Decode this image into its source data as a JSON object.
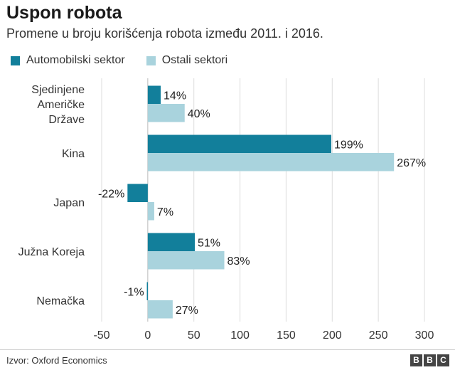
{
  "header": {
    "title": "Uspon robota",
    "subtitle": "Promene u broju korišćenja robota između 2011. i 2016."
  },
  "footer": {
    "source": "Izvor: Oxford Economics",
    "logo_letters": [
      "B",
      "B",
      "C"
    ]
  },
  "colors": {
    "auto": "#127f9b",
    "other": "#a9d3dd",
    "grid": "#dddddd",
    "text": "#222222"
  },
  "chart_data": {
    "type": "bar",
    "orientation": "horizontal",
    "title": "Uspon robota",
    "subtitle": "Promene u broju korišćenja robota između 2011. i 2016.",
    "categories": [
      "Sjedinjene Američke Države",
      "Kina",
      "Japan",
      "Južna Koreja",
      "Nemačka"
    ],
    "category_label_lines": [
      [
        "Sjedinjene",
        "Američke",
        "Države"
      ],
      [
        "Kina"
      ],
      [
        "Japan"
      ],
      [
        "Južna Koreja"
      ],
      [
        "Nemačka"
      ]
    ],
    "series": [
      {
        "name": "Automobilski sektor",
        "values": [
          14,
          199,
          -22,
          51,
          -1
        ],
        "labels": [
          "14%",
          "199%",
          "-22%",
          "51%",
          "-1%"
        ],
        "color": "#127f9b"
      },
      {
        "name": "Ostali sektori",
        "values": [
          40,
          267,
          7,
          83,
          27
        ],
        "labels": [
          "40%",
          "267%",
          "7%",
          "83%",
          "27%"
        ],
        "color": "#a9d3dd"
      }
    ],
    "xlim": [
      -50,
      300
    ],
    "xticks": [
      -50,
      0,
      50,
      100,
      150,
      200,
      250,
      300
    ],
    "xtick_labels": [
      "-50",
      "0",
      "50",
      "100",
      "150",
      "200",
      "250",
      "300"
    ],
    "grid": true,
    "legend_position": "top-left"
  }
}
